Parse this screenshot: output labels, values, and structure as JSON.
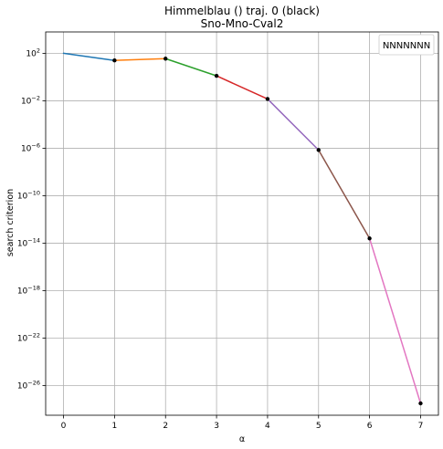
{
  "chart_data": {
    "type": "line",
    "title": "Himmelblau () traj. 0 (black)",
    "subtitle": "Sno-Mno-Cval2",
    "xlabel": "α",
    "ylabel": "search criterion",
    "yscale": "log",
    "xlim": [
      -0.35,
      7.35
    ],
    "ylim_log10": [
      -28.5,
      3.8
    ],
    "x_ticks": [
      0,
      1,
      2,
      3,
      4,
      5,
      6,
      7
    ],
    "y_ticks": [
      {
        "exp": 2,
        "base": "10",
        "sup": "2"
      },
      {
        "exp": -2,
        "base": "10",
        "sup": "−2"
      },
      {
        "exp": -6,
        "base": "10",
        "sup": "−6"
      },
      {
        "exp": -10,
        "base": "10",
        "sup": "−10"
      },
      {
        "exp": -14,
        "base": "10",
        "sup": "−14"
      },
      {
        "exp": -18,
        "base": "10",
        "sup": "−18"
      },
      {
        "exp": -22,
        "base": "10",
        "sup": "−22"
      },
      {
        "exp": -26,
        "base": "10",
        "sup": "−26"
      }
    ],
    "grid": true,
    "legend": {
      "position": "top-right",
      "entries": [
        "NNNNNNN"
      ]
    },
    "x": [
      0,
      1,
      2,
      3,
      4,
      5,
      6,
      7
    ],
    "y_log10": [
      2.0,
      1.4,
      1.55,
      0.1,
      -1.85,
      -6.15,
      -13.6,
      -27.5
    ],
    "segment_colors": [
      "#1f77b4",
      "#ff7f0e",
      "#2ca02c",
      "#d62728",
      "#9467bd",
      "#8c564b",
      "#e377c2"
    ],
    "marker_color": "#000000"
  }
}
